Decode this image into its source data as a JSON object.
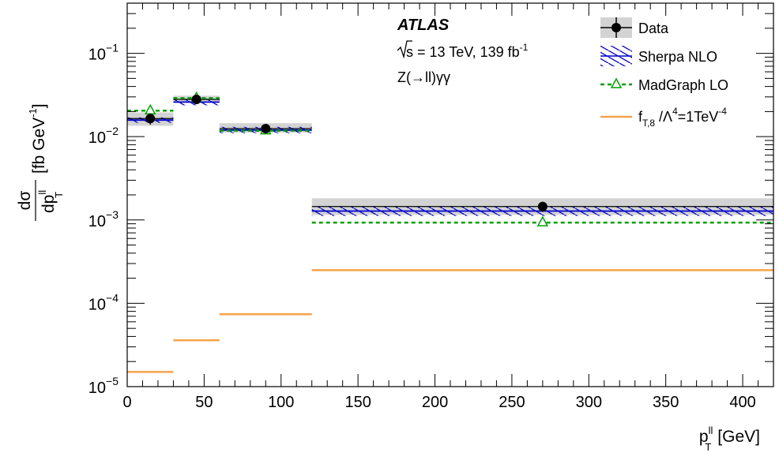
{
  "chart_data": {
    "type": "step-histogram",
    "yscale": "log",
    "xlim": [
      0,
      420
    ],
    "ylim": [
      1e-05,
      0.4
    ],
    "bins": [
      [
        0,
        30
      ],
      [
        30,
        60
      ],
      [
        60,
        120
      ],
      [
        120,
        420
      ]
    ],
    "x_ticks": [
      0,
      50,
      100,
      150,
      200,
      250,
      300,
      350,
      400
    ],
    "x_tick_labels": [
      "0",
      "50",
      "100",
      "150",
      "200",
      "250",
      "300",
      "350",
      "400"
    ],
    "y_tick_labels": [
      {
        "value": 0.1,
        "base": "10",
        "exp": "−1"
      },
      {
        "value": 0.01,
        "base": "10",
        "exp": "−2"
      },
      {
        "value": 0.001,
        "base": "10",
        "exp": "−3"
      },
      {
        "value": 0.0001,
        "base": "10",
        "exp": "−4"
      },
      {
        "value": 1e-05,
        "base": "10",
        "exp": "−5"
      }
    ],
    "xlabel": {
      "main": "p",
      "sup": "ll",
      "sub": "T",
      "unit": "[GeV]"
    },
    "ylabel": {
      "num": "dσ",
      "den_main": "dp",
      "den_sup": "ll",
      "den_sub": "T",
      "unit_main": "[fb GeV",
      "unit_sup": "-1",
      "unit_close": "]"
    },
    "annotations": {
      "experiment": "ATLAS",
      "energy_prefix": "s",
      "energy_text": " = 13 TeV, 139 fb",
      "energy_sup": "-1",
      "process": "Z(→ll)γγ"
    },
    "series": [
      {
        "key": "data",
        "name": "Data",
        "x": [
          15,
          45,
          90,
          270
        ],
        "values": [
          0.0165,
          0.028,
          0.0125,
          0.00145
        ],
        "err_low": [
          0.0025,
          0.003,
          0.0015,
          0.0002
        ],
        "err_high": [
          0.0025,
          0.003,
          0.0015,
          0.0002
        ],
        "band_low": [
          0.0135,
          0.0255,
          0.0112,
          0.00115
        ],
        "band_high": [
          0.0195,
          0.031,
          0.0145,
          0.00182
        ],
        "color": "#000000",
        "band_color": "#d3d3d3"
      },
      {
        "key": "sherpa",
        "name": "Sherpa NLO",
        "values": [
          0.0158,
          0.026,
          0.012,
          0.00128
        ],
        "band_low": [
          0.0147,
          0.0238,
          0.011,
          0.00112
        ],
        "band_high": [
          0.017,
          0.0285,
          0.0131,
          0.00145
        ],
        "color": "#0000cc"
      },
      {
        "key": "madgraph",
        "name": "MadGraph LO",
        "x": [
          15,
          45,
          90,
          270
        ],
        "values": [
          0.0205,
          0.029,
          0.0118,
          0.00093
        ],
        "color": "#00a000"
      },
      {
        "key": "eft",
        "name_main": "f",
        "name_sub": "T,8",
        "name_mid": " /Λ",
        "name_sup": "4",
        "name_end": "=1TeV",
        "name_sup2": "-4",
        "values": [
          1.5e-05,
          3.6e-05,
          7.4e-05,
          0.00025
        ],
        "color": "#f7a24a"
      }
    ],
    "legend_position": "top-right"
  }
}
